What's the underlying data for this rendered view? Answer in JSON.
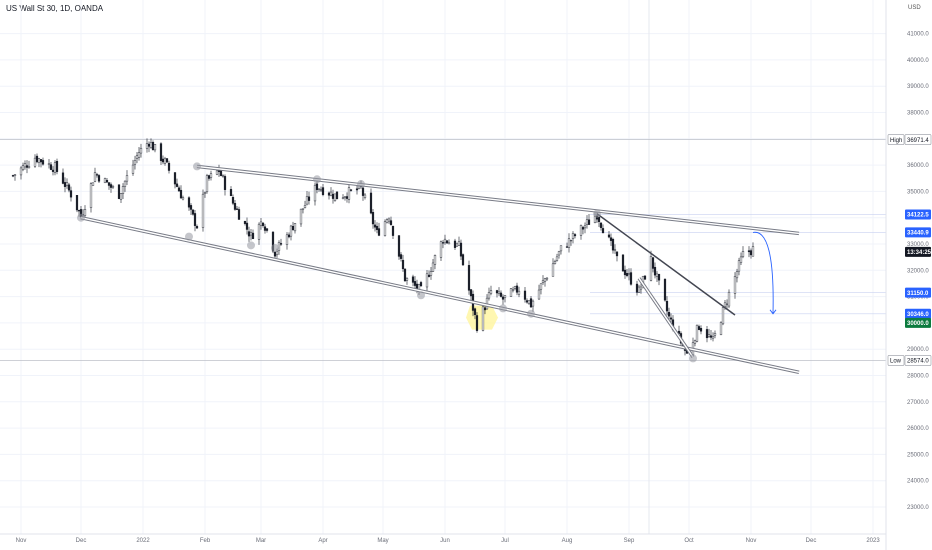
{
  "header": {
    "title": "US Wall St 30, 1D, OANDA",
    "currency": "USD"
  },
  "colors": {
    "candle": "#131722",
    "grid": "#f0f3fa",
    "channel": "#787b86",
    "arrow": "#2962ff",
    "pivot": "#9598a1",
    "highlight": "#fff59d"
  },
  "chart_data": {
    "type": "candlestick",
    "title": "US Wall St 30, 1D, OANDA",
    "xlabel": "",
    "ylabel": "",
    "ylim": [
      22000,
      42000
    ],
    "grid": true,
    "x_tick_labels": [
      "Nov",
      "Dec",
      "2022",
      "Feb",
      "Mar",
      "Apr",
      "May",
      "Jun",
      "Jul",
      "Aug",
      "Sep",
      "Oct",
      "Nov",
      "Dec",
      "2023"
    ],
    "x_tick_dates": [
      "2021-11-01",
      "2021-12-01",
      "2022-01-01",
      "2022-02-01",
      "2022-03-01",
      "2022-04-01",
      "2022-05-01",
      "2022-06-01",
      "2022-07-01",
      "2022-08-01",
      "2022-09-01",
      "2022-10-01",
      "2022-11-01",
      "2022-12-01",
      "2023-01-01"
    ],
    "y_tick_labels": [
      "23000.0",
      "24000.0",
      "25000.0",
      "26000.0",
      "27000.0",
      "28000.0",
      "29000.0",
      "30000.0",
      "31000.0",
      "32000.0",
      "33000.0",
      "34000.0",
      "35000.0",
      "36000.0",
      "37000.0",
      "38000.0",
      "39000.0",
      "40000.0",
      "41000.0"
    ],
    "y_ticks": [
      23000,
      24000,
      25000,
      26000,
      27000,
      28000,
      29000,
      30000,
      31000,
      32000,
      33000,
      34000,
      35000,
      36000,
      37000,
      38000,
      39000,
      40000,
      41000
    ],
    "price_path": [
      [
        "2021-10-28",
        35600
      ],
      [
        "2021-11-08",
        36300
      ],
      [
        "2021-11-18",
        35900
      ],
      [
        "2021-11-26",
        34900
      ],
      [
        "2021-12-01",
        34050
      ],
      [
        "2021-12-08",
        35700
      ],
      [
        "2021-12-20",
        34900
      ],
      [
        "2021-12-30",
        36500
      ],
      [
        "2022-01-04",
        36900
      ],
      [
        "2022-01-12",
        36100
      ],
      [
        "2022-01-24",
        34300
      ],
      [
        "2022-01-28",
        33700
      ],
      [
        "2022-02-02",
        35400
      ],
      [
        "2022-02-08",
        35800
      ],
      [
        "2022-02-14",
        34700
      ],
      [
        "2022-02-24",
        33300
      ],
      [
        "2022-03-02",
        33900
      ],
      [
        "2022-03-08",
        32700
      ],
      [
        "2022-03-14",
        33300
      ],
      [
        "2022-03-23",
        34500
      ],
      [
        "2022-03-29",
        35200
      ],
      [
        "2022-04-08",
        34800
      ],
      [
        "2022-04-20",
        35100
      ],
      [
        "2022-04-28",
        33400
      ],
      [
        "2022-05-04",
        34100
      ],
      [
        "2022-05-12",
        31700
      ],
      [
        "2022-05-20",
        31200
      ],
      [
        "2022-05-31",
        33200
      ],
      [
        "2022-06-08",
        32900
      ],
      [
        "2022-06-17",
        29900
      ],
      [
        "2022-06-24",
        31200
      ],
      [
        "2022-06-30",
        30900
      ],
      [
        "2022-07-08",
        31300
      ],
      [
        "2022-07-14",
        30700
      ],
      [
        "2022-07-29",
        32800
      ],
      [
        "2022-08-16",
        34150
      ],
      [
        "2022-08-26",
        32400
      ],
      [
        "2022-09-06",
        31200
      ],
      [
        "2022-09-12",
        32400
      ],
      [
        "2022-09-21",
        30200
      ],
      [
        "2022-09-30",
        28800
      ],
      [
        "2022-10-06",
        29900
      ],
      [
        "2022-10-13",
        29300
      ],
      [
        "2022-10-21",
        31100
      ],
      [
        "2022-10-28",
        32600
      ],
      [
        "2022-11-02",
        32800
      ]
    ],
    "levels": [
      {
        "label": "High",
        "price_label": "36971.4",
        "value": 36971.4,
        "style": "high"
      },
      {
        "label": "",
        "price_label": "34122.5",
        "value": 34122.5,
        "style": "blue"
      },
      {
        "label": "",
        "price_label": "33440.9",
        "value": 33440.9,
        "style": "blue"
      },
      {
        "label": "",
        "price_label": "13:34:25",
        "value": 32700,
        "style": "dark"
      },
      {
        "label": "",
        "price_label": "31150.0",
        "value": 31150.0,
        "style": "blue"
      },
      {
        "label": "",
        "price_label": "30346.0",
        "value": 30346.0,
        "style": "blue"
      },
      {
        "label": "",
        "price_label": "30000.0",
        "value": 30000.0,
        "style": "green"
      },
      {
        "label": "Low",
        "price_label": "28574.0",
        "value": 28574.0,
        "style": "low"
      }
    ],
    "channel_upper": [
      [
        "2022-01-28",
        35950
      ],
      [
        "2022-11-25",
        33400
      ]
    ],
    "channel_lower": [
      [
        "2021-12-01",
        34000
      ],
      [
        "2022-11-25",
        28120
      ]
    ],
    "wedge_upper": [
      [
        "2022-08-16",
        34150
      ],
      [
        "2022-10-24",
        30300
      ]
    ],
    "wedge_lower": [
      [
        "2022-09-06",
        31700
      ],
      [
        "2022-10-03",
        28700
      ]
    ],
    "projection_arrow": [
      [
        "2022-11-02",
        33440
      ],
      [
        "2022-11-12",
        30346
      ]
    ],
    "pivots": [
      [
        "2021-12-01",
        34000
      ],
      [
        "2022-01-24",
        33280
      ],
      [
        "2022-02-24",
        32950
      ],
      [
        "2022-03-08",
        32850
      ],
      [
        "2022-05-20",
        31050
      ],
      [
        "2022-06-30",
        30550
      ],
      [
        "2022-07-14",
        30350
      ],
      [
        "2022-01-28",
        35950
      ],
      [
        "2022-03-29",
        35460
      ],
      [
        "2022-04-20",
        35280
      ],
      [
        "2022-08-16",
        34150
      ],
      [
        "2022-10-03",
        28650
      ]
    ]
  }
}
